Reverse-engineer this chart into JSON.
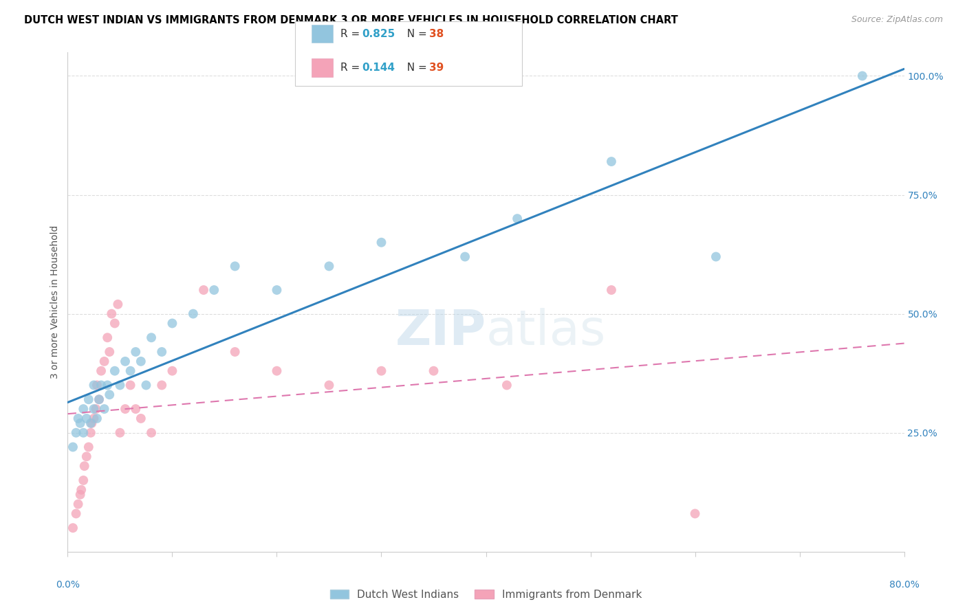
{
  "title": "DUTCH WEST INDIAN VS IMMIGRANTS FROM DENMARK 3 OR MORE VEHICLES IN HOUSEHOLD CORRELATION CHART",
  "source": "Source: ZipAtlas.com",
  "ylabel": "3 or more Vehicles in Household",
  "ylabel_right_ticks": [
    "100.0%",
    "75.0%",
    "50.0%",
    "25.0%"
  ],
  "legend1_r": "0.825",
  "legend1_n": "38",
  "legend2_r": "0.144",
  "legend2_n": "39",
  "legend1_label": "Dutch West Indians",
  "legend2_label": "Immigrants from Denmark",
  "blue_color": "#92c5de",
  "pink_color": "#f4a3b8",
  "line_blue": "#3182bd",
  "line_pink": "#de77ae",
  "r_color": "#31a0c8",
  "n_color": "#e05020",
  "xmin": 0.0,
  "xmax": 0.8,
  "ymin": 0.0,
  "ymax": 1.05,
  "blue_x": [
    0.005,
    0.008,
    0.01,
    0.012,
    0.015,
    0.015,
    0.018,
    0.02,
    0.022,
    0.025,
    0.025,
    0.028,
    0.03,
    0.032,
    0.035,
    0.038,
    0.04,
    0.045,
    0.05,
    0.055,
    0.06,
    0.065,
    0.07,
    0.075,
    0.08,
    0.09,
    0.1,
    0.12,
    0.14,
    0.16,
    0.2,
    0.25,
    0.3,
    0.38,
    0.43,
    0.52,
    0.62,
    0.76
  ],
  "blue_y": [
    0.22,
    0.25,
    0.28,
    0.27,
    0.25,
    0.3,
    0.28,
    0.32,
    0.27,
    0.3,
    0.35,
    0.28,
    0.32,
    0.35,
    0.3,
    0.35,
    0.33,
    0.38,
    0.35,
    0.4,
    0.38,
    0.42,
    0.4,
    0.35,
    0.45,
    0.42,
    0.48,
    0.5,
    0.55,
    0.6,
    0.55,
    0.6,
    0.65,
    0.62,
    0.7,
    0.82,
    0.62,
    1.0
  ],
  "pink_x": [
    0.005,
    0.008,
    0.01,
    0.012,
    0.013,
    0.015,
    0.016,
    0.018,
    0.02,
    0.022,
    0.023,
    0.025,
    0.027,
    0.028,
    0.03,
    0.032,
    0.035,
    0.038,
    0.04,
    0.042,
    0.045,
    0.048,
    0.05,
    0.055,
    0.06,
    0.065,
    0.07,
    0.08,
    0.09,
    0.1,
    0.13,
    0.16,
    0.2,
    0.25,
    0.3,
    0.35,
    0.42,
    0.52,
    0.6
  ],
  "pink_y": [
    0.05,
    0.08,
    0.1,
    0.12,
    0.13,
    0.15,
    0.18,
    0.2,
    0.22,
    0.25,
    0.27,
    0.28,
    0.3,
    0.35,
    0.32,
    0.38,
    0.4,
    0.45,
    0.42,
    0.5,
    0.48,
    0.52,
    0.25,
    0.3,
    0.35,
    0.3,
    0.28,
    0.25,
    0.35,
    0.38,
    0.55,
    0.42,
    0.38,
    0.35,
    0.38,
    0.38,
    0.35,
    0.55,
    0.08
  ]
}
